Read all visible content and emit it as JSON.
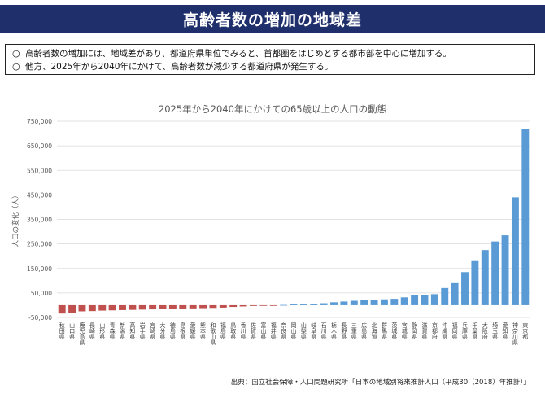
{
  "header": {
    "title": "高齢者数の増加の地域差"
  },
  "notes": [
    {
      "marker": "○",
      "text": "高齢者数の増加には、地域差があり、都道府県単位でみると、首都圏をはじめとする都市部を中心に増加する。"
    },
    {
      "marker": "○",
      "text": "他方、2025年から2040年にかけて、高齢者数が減少する都道府県が発生する。"
    }
  ],
  "chart_data": {
    "type": "bar",
    "title": "2025年から2040年にかけての65歳以上の人口の動態",
    "ylabel": "人口の変化（人）",
    "xlabel": "",
    "ylim": [
      -50000,
      750000
    ],
    "yticks": [
      -50000,
      50000,
      150000,
      250000,
      350000,
      450000,
      550000,
      650000,
      750000
    ],
    "ytick_labels": [
      "-50,000",
      "50,000",
      "150,000",
      "250,000",
      "350,000",
      "450,000",
      "550,000",
      "650,000",
      "750,000"
    ],
    "grid": "horizontal",
    "legend": "none",
    "colors": {
      "negative": "#c0504d",
      "positive": "#5b9bd5"
    },
    "categories": [
      "秋田県",
      "山口県",
      "鹿児島県",
      "長崎県",
      "山形県",
      "青森県",
      "新潟県",
      "高知県",
      "岩手県",
      "宮崎県",
      "大分県",
      "徳島県",
      "島根県",
      "愛媛県",
      "熊本県",
      "和歌山県",
      "福島県",
      "鳥取県",
      "香川県",
      "佐賀県",
      "富山県",
      "福井県",
      "奈良県",
      "岡山県",
      "山梨県",
      "岐阜県",
      "石川県",
      "栃木県",
      "長野県",
      "三重県",
      "広島県",
      "北海道",
      "群馬県",
      "茨城県",
      "宮城県",
      "静岡県",
      "滋賀県",
      "京都府",
      "沖縄県",
      "福岡県",
      "兵庫県",
      "千葉県",
      "大阪府",
      "埼玉県",
      "愛知県",
      "神奈川県",
      "東京都"
    ],
    "values": [
      -34000,
      -31000,
      -25000,
      -24000,
      -22000,
      -21000,
      -20000,
      -19000,
      -18000,
      -17000,
      -16000,
      -15000,
      -14000,
      -13000,
      -12000,
      -11000,
      -10000,
      -7000,
      -5000,
      -3000,
      -2000,
      -1000,
      1000,
      4000,
      5000,
      6000,
      8000,
      12000,
      15000,
      18000,
      20000,
      22000,
      24000,
      26000,
      32000,
      40000,
      42000,
      45000,
      70000,
      90000,
      135000,
      180000,
      225000,
      260000,
      285000,
      440000,
      720000
    ]
  },
  "source": "出典：国立社会保障・人口問題研究所「日本の地域別将来推計人口（平成30（2018）年推計）」"
}
